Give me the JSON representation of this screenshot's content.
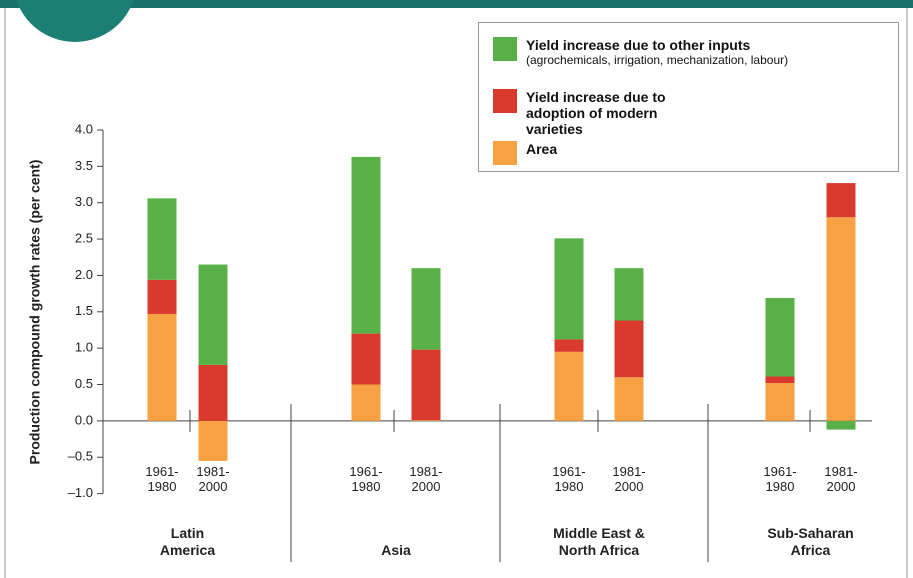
{
  "chart_data": {
    "type": "bar",
    "stacked": true,
    "y_label": "Production compound growth rates (per cent)",
    "groups": [
      "Latin America",
      "Asia",
      "Middle East & North Africa",
      "Sub-Saharan Africa"
    ],
    "categories": [
      "1961-1980",
      "1981-2000",
      "1961-1980",
      "1981-2000",
      "1961-1980",
      "1981-2000",
      "1961-1980",
      "1981-2000"
    ],
    "series": [
      {
        "name": "Area",
        "color": "#f7a142",
        "values": [
          1.47,
          -0.55,
          0.5,
          0.01,
          0.95,
          0.6,
          0.52,
          2.8
        ]
      },
      {
        "name": "Yield increase due to adoption of modern varieties",
        "color": "#d93a2b",
        "values": [
          0.47,
          0.77,
          0.7,
          0.97,
          0.17,
          0.78,
          0.09,
          0.47
        ]
      },
      {
        "name": "Yield increase due to other inputs",
        "description": "(agrochemicals, irrigation, mechanization, labour)",
        "color": "#58b047",
        "values": [
          1.12,
          1.38,
          2.43,
          1.12,
          1.39,
          0.72,
          1.08,
          -0.12
        ]
      }
    ],
    "ylim": [
      -1.0,
      4.0
    ],
    "yticks": [
      {
        "value": -1.0,
        "label": "–1.0"
      },
      {
        "value": -0.5,
        "label": "–0.5"
      },
      {
        "value": 0,
        "label": "0.0"
      },
      {
        "value": 0.5,
        "label": "0.5"
      },
      {
        "value": 1.0,
        "label": "1.0"
      },
      {
        "value": 1.5,
        "label": "1.5"
      },
      {
        "value": 2.0,
        "label": "2.0"
      },
      {
        "value": 2.5,
        "label": "2.5"
      },
      {
        "value": 3.0,
        "label": "3.0"
      },
      {
        "value": 3.5,
        "label": "3.5"
      },
      {
        "value": 4.0,
        "label": "4.0"
      }
    ]
  }
}
